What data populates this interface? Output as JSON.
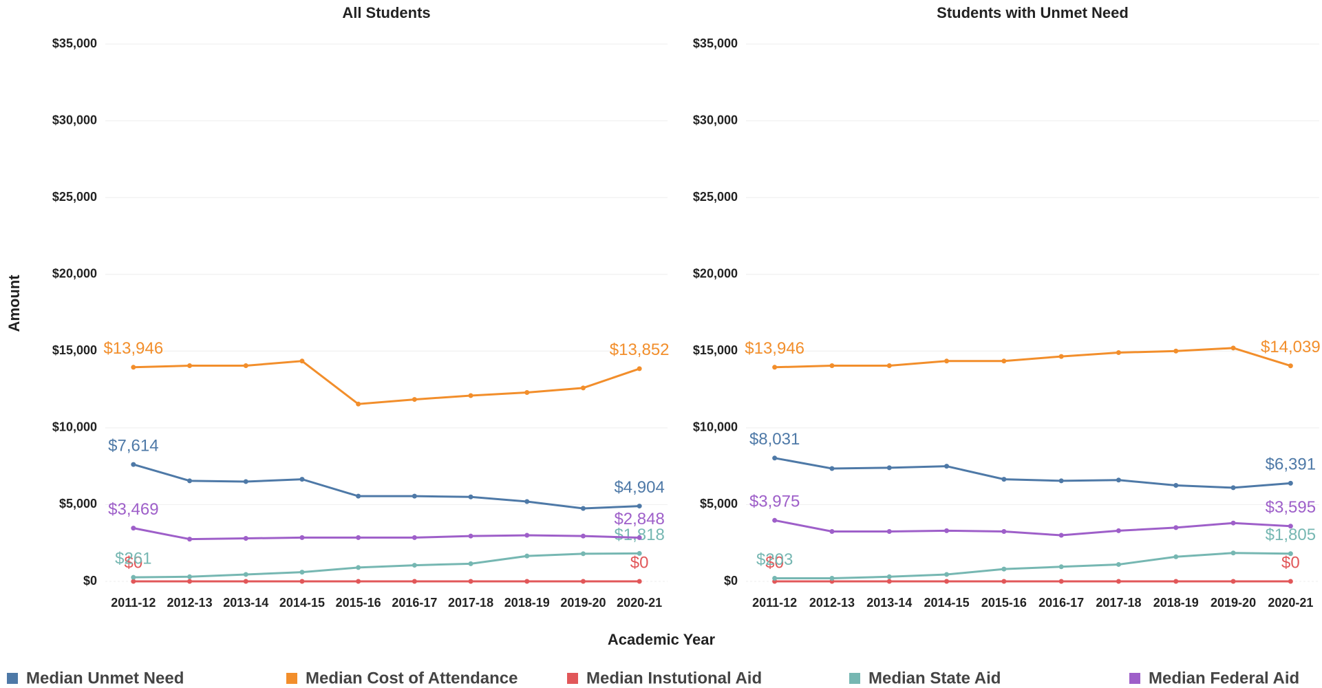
{
  "chart_data": [
    {
      "type": "line",
      "title": "All Students",
      "xlabel": "Academic Year",
      "ylabel": "Amount",
      "categories": [
        "2011-12",
        "2012-13",
        "2013-14",
        "2014-15",
        "2015-16",
        "2016-17",
        "2017-18",
        "2018-19",
        "2019-20",
        "2020-21"
      ],
      "ylim": [
        0,
        35000
      ],
      "yticks": [
        {
          "value": 0,
          "label": "$0"
        },
        {
          "value": 5000,
          "label": "$5,000"
        },
        {
          "value": 10000,
          "label": "$10,000"
        },
        {
          "value": 15000,
          "label": "$15,000"
        },
        {
          "value": 20000,
          "label": "$20,000"
        },
        {
          "value": 25000,
          "label": "$25,000"
        },
        {
          "value": 30000,
          "label": "$30,000"
        },
        {
          "value": 35000,
          "label": "$35,000"
        }
      ],
      "grid": true,
      "series": [
        {
          "name": "Median Unmet Need",
          "color": "#4e79a7",
          "values": [
            7614,
            6550,
            6500,
            6650,
            5550,
            5550,
            5500,
            5200,
            4750,
            4904
          ],
          "value_labels": [
            "$7,614",
            null,
            null,
            null,
            null,
            null,
            null,
            null,
            null,
            "$4,904"
          ]
        },
        {
          "name": "Median Cost of Attendance",
          "color": "#f28e2b",
          "values": [
            13946,
            14050,
            14050,
            14350,
            11550,
            11850,
            12100,
            12300,
            12600,
            13852
          ],
          "value_labels": [
            "$13,946",
            null,
            null,
            null,
            null,
            null,
            null,
            null,
            null,
            "$13,852"
          ]
        },
        {
          "name": "Median Instutional Aid",
          "color": "#e15759",
          "values": [
            0,
            0,
            0,
            0,
            0,
            0,
            0,
            0,
            0,
            0
          ],
          "value_labels": [
            "$0",
            null,
            null,
            null,
            null,
            null,
            null,
            null,
            null,
            "$0"
          ]
        },
        {
          "name": "Median State Aid",
          "color": "#76b7b2",
          "values": [
            261,
            300,
            450,
            600,
            900,
            1050,
            1150,
            1650,
            1800,
            1818
          ],
          "value_labels": [
            "$261",
            null,
            null,
            null,
            null,
            null,
            null,
            null,
            null,
            "$1,818"
          ]
        },
        {
          "name": "Median Federal Aid",
          "color": "#9e5fc9",
          "values": [
            3469,
            2750,
            2800,
            2850,
            2850,
            2850,
            2950,
            3000,
            2950,
            2848
          ],
          "value_labels": [
            "$3,469",
            null,
            null,
            null,
            null,
            null,
            null,
            null,
            null,
            "$2,848"
          ]
        }
      ]
    },
    {
      "type": "line",
      "title": "Students with Unmet Need",
      "categories": [
        "2011-12",
        "2012-13",
        "2013-14",
        "2014-15",
        "2015-16",
        "2016-17",
        "2017-18",
        "2018-19",
        "2019-20",
        "2020-21"
      ],
      "ylim": [
        0,
        35000
      ],
      "yticks": [
        {
          "value": 0,
          "label": "$0"
        },
        {
          "value": 5000,
          "label": "$5,000"
        },
        {
          "value": 10000,
          "label": "$10,000"
        },
        {
          "value": 15000,
          "label": "$15,000"
        },
        {
          "value": 20000,
          "label": "$20,000"
        },
        {
          "value": 25000,
          "label": "$25,000"
        },
        {
          "value": 30000,
          "label": "$30,000"
        },
        {
          "value": 35000,
          "label": "$35,000"
        }
      ],
      "grid": true,
      "series": [
        {
          "name": "Median Unmet Need",
          "color": "#4e79a7",
          "values": [
            8031,
            7350,
            7400,
            7500,
            6650,
            6550,
            6600,
            6250,
            6100,
            6391
          ],
          "value_labels": [
            "$8,031",
            null,
            null,
            null,
            null,
            null,
            null,
            null,
            null,
            "$6,391"
          ]
        },
        {
          "name": "Median Cost of Attendance",
          "color": "#f28e2b",
          "values": [
            13946,
            14050,
            14050,
            14350,
            14350,
            14650,
            14900,
            15000,
            15200,
            14039
          ],
          "value_labels": [
            "$13,946",
            null,
            null,
            null,
            null,
            null,
            null,
            null,
            null,
            "$14,039"
          ]
        },
        {
          "name": "Median Instutional Aid",
          "color": "#e15759",
          "values": [
            0,
            0,
            0,
            0,
            0,
            0,
            0,
            0,
            0,
            0
          ],
          "value_labels": [
            "$0",
            null,
            null,
            null,
            null,
            null,
            null,
            null,
            null,
            "$0"
          ]
        },
        {
          "name": "Median State Aid",
          "color": "#76b7b2",
          "values": [
            203,
            200,
            300,
            450,
            800,
            950,
            1100,
            1600,
            1850,
            1805
          ],
          "value_labels": [
            "$203",
            null,
            null,
            null,
            null,
            null,
            null,
            null,
            null,
            "$1,805"
          ]
        },
        {
          "name": "Median Federal Aid",
          "color": "#9e5fc9",
          "values": [
            3975,
            3250,
            3250,
            3300,
            3250,
            3000,
            3300,
            3500,
            3800,
            3595
          ],
          "value_labels": [
            "$3,975",
            null,
            null,
            null,
            null,
            null,
            null,
            null,
            null,
            "$3,595"
          ]
        }
      ]
    }
  ]
}
